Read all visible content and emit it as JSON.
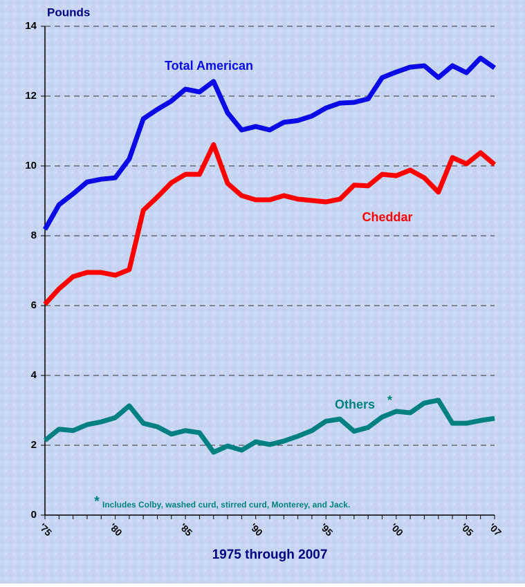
{
  "chart_data": {
    "type": "line",
    "y_axis_label": "Pounds",
    "x_axis_label": "1975 through 2007",
    "footnote_marker": "*",
    "footnote": "Includes Colby, washed curd, stirred curd, Monterey, and Jack.",
    "x": [
      1975,
      1976,
      1977,
      1978,
      1979,
      1980,
      1981,
      1982,
      1983,
      1984,
      1985,
      1986,
      1987,
      1988,
      1989,
      1990,
      1991,
      1992,
      1993,
      1994,
      1995,
      1996,
      1997,
      1998,
      1999,
      2000,
      2001,
      2002,
      2003,
      2004,
      2005,
      2006,
      2007
    ],
    "series": [
      {
        "name": "Total American",
        "color": "#0a0ae6",
        "values": [
          8.18,
          8.89,
          9.2,
          9.54,
          9.62,
          9.66,
          10.2,
          11.35,
          11.62,
          11.86,
          12.2,
          12.12,
          12.42,
          11.52,
          11.03,
          11.13,
          11.03,
          11.25,
          11.3,
          11.43,
          11.66,
          11.8,
          11.82,
          11.92,
          12.53,
          12.69,
          12.83,
          12.87,
          12.53,
          12.87,
          12.67,
          13.09,
          12.81
        ]
      },
      {
        "name": "Cheddar",
        "color": "#ff0000",
        "values": [
          6.04,
          6.48,
          6.83,
          6.95,
          6.95,
          6.87,
          7.03,
          8.73,
          9.11,
          9.52,
          9.76,
          9.76,
          10.61,
          9.5,
          9.15,
          9.03,
          9.03,
          9.15,
          9.05,
          9.01,
          8.97,
          9.05,
          9.45,
          9.43,
          9.76,
          9.72,
          9.88,
          9.66,
          9.25,
          10.24,
          10.06,
          10.38,
          10.04
        ]
      },
      {
        "name": "Others",
        "color": "#008080",
        "values": [
          2.14,
          2.46,
          2.42,
          2.59,
          2.67,
          2.79,
          3.13,
          2.63,
          2.53,
          2.32,
          2.42,
          2.36,
          1.8,
          1.98,
          1.86,
          2.1,
          2.02,
          2.12,
          2.26,
          2.42,
          2.69,
          2.75,
          2.4,
          2.51,
          2.81,
          2.97,
          2.93,
          3.21,
          3.29,
          2.63,
          2.63,
          2.71,
          2.77
        ]
      }
    ],
    "xlim": [
      1975,
      2007
    ],
    "xticks": [
      {
        "value": 1975,
        "label": "'75"
      },
      {
        "value": 1980,
        "label": "'80"
      },
      {
        "value": 1985,
        "label": "'85"
      },
      {
        "value": 1990,
        "label": "'90"
      },
      {
        "value": 1995,
        "label": "'95"
      },
      {
        "value": 2000,
        "label": "'00"
      },
      {
        "value": 2005,
        "label": "'05"
      },
      {
        "value": 2007,
        "label": "'07"
      }
    ],
    "ylim": [
      0,
      14
    ],
    "yticks": [
      0,
      2,
      4,
      6,
      8,
      10,
      12,
      14
    ],
    "grid": true
  }
}
